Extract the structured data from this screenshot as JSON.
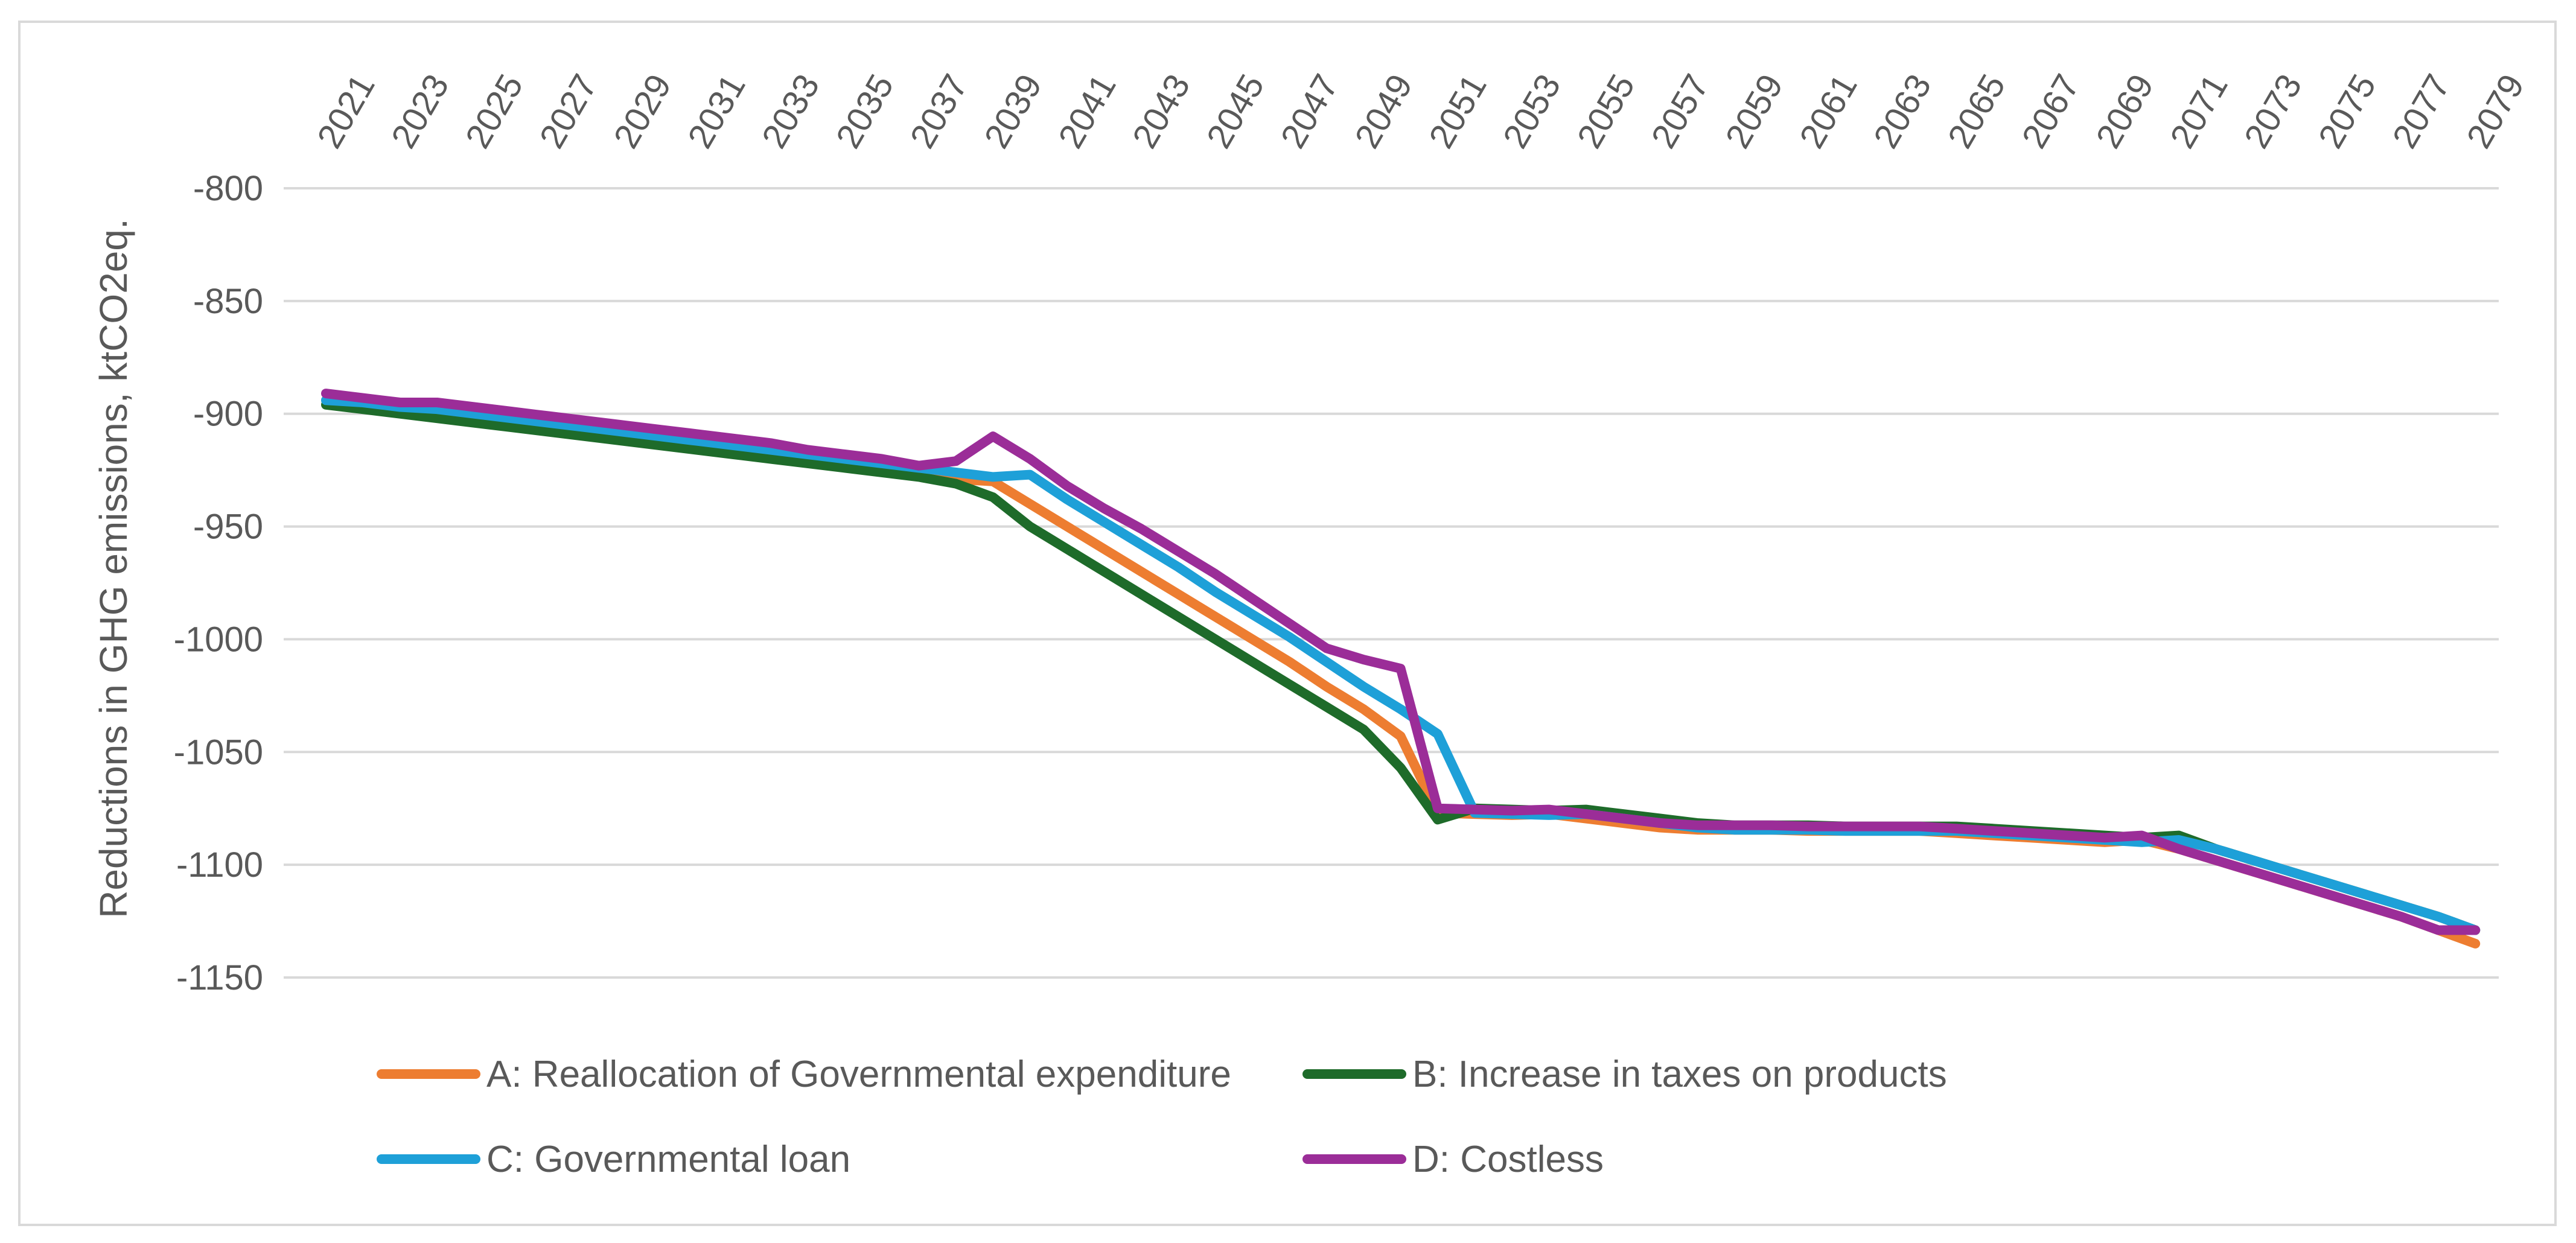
{
  "chart_data": {
    "type": "line",
    "title": "",
    "xlabel": "",
    "ylabel": "Reductions in GHG emissions, ktCO2eq.",
    "ylim": [
      -1150,
      -800
    ],
    "yticks": [
      -800,
      -850,
      -900,
      -950,
      -1000,
      -1050,
      -1100,
      -1150
    ],
    "ytick_labels": [
      "-800",
      "-850",
      "-900",
      "-950",
      "-1000",
      "-1050",
      "-1100",
      "-1150"
    ],
    "x": [
      2021,
      2022,
      2023,
      2024,
      2025,
      2026,
      2027,
      2028,
      2029,
      2030,
      2031,
      2032,
      2033,
      2034,
      2035,
      2036,
      2037,
      2038,
      2039,
      2040,
      2041,
      2042,
      2043,
      2044,
      2045,
      2046,
      2047,
      2048,
      2049,
      2050,
      2051,
      2052,
      2053,
      2054,
      2055,
      2056,
      2057,
      2058,
      2059,
      2060,
      2061,
      2062,
      2063,
      2064,
      2065,
      2066,
      2067,
      2068,
      2069,
      2070,
      2071,
      2072,
      2073,
      2074,
      2075,
      2076,
      2077,
      2078,
      2079
    ],
    "xtick_labels": [
      "2021",
      "2023",
      "2025",
      "2027",
      "2029",
      "2031",
      "2033",
      "2035",
      "2037",
      "2039",
      "2041",
      "2043",
      "2045",
      "2047",
      "2049",
      "2051",
      "2053",
      "2055",
      "2057",
      "2059",
      "2061",
      "2063",
      "2065",
      "2067",
      "2069",
      "2071",
      "2073",
      "2075",
      "2077",
      "2079"
    ],
    "grid": true,
    "legend_position": "bottom",
    "series": [
      {
        "name": "A: Reallocation of Governmental expenditure",
        "color": "#ed7d31",
        "values": [
          -894,
          -896,
          -898,
          -900,
          -902,
          -904,
          -906,
          -908,
          -910,
          -912,
          -914,
          -916,
          -918,
          -920,
          -922,
          -924,
          -926,
          -929,
          -930,
          -940,
          -950,
          -960,
          -970,
          -980,
          -990,
          -1000,
          -1010,
          -1021,
          -1031,
          -1043,
          -1077,
          -1077.5,
          -1078,
          -1077.5,
          -1079.5,
          -1081.5,
          -1083.5,
          -1084.5,
          -1084.5,
          -1084.5,
          -1085,
          -1085,
          -1085,
          -1085,
          -1086,
          -1087,
          -1088,
          -1089,
          -1090,
          -1089,
          -1093,
          -1098,
          -1103,
          -1108,
          -1113,
          -1118,
          -1123,
          -1129,
          -1135
        ]
      },
      {
        "name": "B: Increase in taxes on products",
        "color": "#1e6b2a",
        "values": [
          -896,
          -898,
          -900,
          -902,
          -904,
          -906,
          -908,
          -910,
          -912,
          -914,
          -916,
          -918,
          -920,
          -922,
          -924,
          -926,
          -928,
          -931,
          -937,
          -950,
          -960,
          -970,
          -980,
          -990,
          -1000,
          -1010,
          -1020,
          -1030,
          -1040,
          -1057,
          -1080,
          -1075,
          -1075.5,
          -1076,
          -1075.5,
          -1077.5,
          -1079.5,
          -1081.5,
          -1082.5,
          -1082.5,
          -1082.5,
          -1083,
          -1083,
          -1083,
          -1083,
          -1084,
          -1085,
          -1086,
          -1087,
          -1088,
          -1087,
          -1093,
          -1098,
          -1103,
          -1108,
          -1113,
          -1118,
          -1123,
          -1129
        ]
      },
      {
        "name": "C: Governmental loan",
        "color": "#1ea0d8",
        "values": [
          -894,
          -895,
          -897,
          -898,
          -900,
          -902,
          -904,
          -906,
          -908,
          -910,
          -912,
          -914,
          -916,
          -918,
          -920,
          -922,
          -924,
          -926,
          -928,
          -927,
          -938,
          -948,
          -958,
          -968,
          -979,
          -989,
          -999,
          -1010,
          -1021,
          -1031,
          -1042,
          -1077,
          -1077.5,
          -1078,
          -1077.5,
          -1079.5,
          -1081.5,
          -1083.5,
          -1084.5,
          -1084.5,
          -1084.5,
          -1085,
          -1085,
          -1085,
          -1085,
          -1086,
          -1087,
          -1088,
          -1089,
          -1090,
          -1089,
          -1093,
          -1098,
          -1103,
          -1108,
          -1113,
          -1118,
          -1123,
          -1129
        ]
      },
      {
        "name": "D: Costless",
        "color": "#9b2d98",
        "values": [
          -891,
          -893,
          -895,
          -895,
          -897,
          -899,
          -901,
          -903,
          -905,
          -907,
          -909,
          -911,
          -913,
          -916,
          -918,
          -920,
          -923,
          -921,
          -910,
          -920,
          -932,
          -942,
          -951,
          -961,
          -971,
          -982,
          -993,
          -1004,
          -1009,
          -1013,
          -1075,
          -1075.5,
          -1076,
          -1075.5,
          -1077.5,
          -1079.5,
          -1081.5,
          -1082.5,
          -1082.5,
          -1082.5,
          -1083,
          -1083,
          -1083,
          -1083,
          -1084,
          -1085,
          -1086,
          -1087,
          -1088,
          -1087,
          -1093,
          -1098,
          -1103,
          -1108,
          -1113,
          -1118,
          -1123,
          -1129,
          -1129
        ]
      }
    ]
  }
}
